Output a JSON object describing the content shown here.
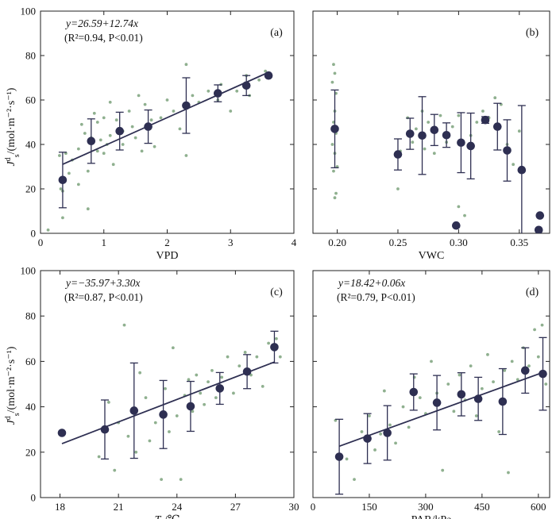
{
  "figure": {
    "y_axis_label_main": "J",
    "y_axis_label_sup": "d",
    "y_axis_label_sub": "s",
    "y_axis_label_units": "/(mol·m⁻²·s⁻¹)"
  },
  "colors": {
    "scatter": "#8fb08f",
    "marker": "#2e2f52",
    "line": "#2e2f52",
    "axis": "#222222"
  },
  "chart_data": [
    {
      "type": "scatter",
      "panel": "(a)",
      "xlabel": "VPD",
      "xlabel_sub": "",
      "xlabel_suffix": "",
      "ylabel": "J_s^d/(mol·m⁻²·s⁻¹)",
      "xlim": [
        0,
        4
      ],
      "ylim": [
        0,
        100
      ],
      "xticks": [
        0,
        1,
        2,
        3,
        4
      ],
      "xtick_labels": [
        "0",
        "1",
        "2",
        "3",
        "4"
      ],
      "yticks": [
        0,
        20,
        40,
        60,
        80,
        100
      ],
      "ytick_labels": [
        "0",
        "20",
        "40",
        "60",
        "80",
        "100"
      ],
      "equation": "y=26.59+12.74x",
      "stats": "(R²=0.94, P<0.01)",
      "fit": {
        "intercept": 26.59,
        "slope": 12.74,
        "x_range": [
          0.35,
          3.6
        ]
      },
      "means": [
        {
          "x": 0.35,
          "y": 24,
          "err": 12.5
        },
        {
          "x": 0.8,
          "y": 41.5,
          "err": 10
        },
        {
          "x": 1.25,
          "y": 46,
          "err": 8.5
        },
        {
          "x": 1.7,
          "y": 48,
          "err": 7.5
        },
        {
          "x": 2.3,
          "y": 57.5,
          "err": 12.5
        },
        {
          "x": 2.8,
          "y": 63,
          "err": 3.8
        },
        {
          "x": 3.25,
          "y": 66.5,
          "err": 4.5
        },
        {
          "x": 3.6,
          "y": 71,
          "err": 0
        }
      ],
      "raw_points": [
        [
          0.12,
          1.5
        ],
        [
          0.3,
          35
        ],
        [
          0.32,
          20
        ],
        [
          0.35,
          7
        ],
        [
          0.35,
          19
        ],
        [
          0.4,
          36
        ],
        [
          0.45,
          27
        ],
        [
          0.5,
          33
        ],
        [
          0.6,
          22
        ],
        [
          0.6,
          38
        ],
        [
          0.65,
          49
        ],
        [
          0.7,
          45
        ],
        [
          0.75,
          28
        ],
        [
          0.75,
          11
        ],
        [
          0.8,
          43
        ],
        [
          0.85,
          54
        ],
        [
          0.9,
          37
        ],
        [
          0.9,
          50
        ],
        [
          0.95,
          42
        ],
        [
          1.0,
          36
        ],
        [
          1.0,
          52
        ],
        [
          1.05,
          40
        ],
        [
          1.1,
          59
        ],
        [
          1.1,
          44
        ],
        [
          1.15,
          31
        ],
        [
          1.2,
          51
        ],
        [
          1.3,
          46
        ],
        [
          1.3,
          40
        ],
        [
          1.4,
          55
        ],
        [
          1.45,
          48
        ],
        [
          1.5,
          43
        ],
        [
          1.55,
          62
        ],
        [
          1.6,
          37
        ],
        [
          1.65,
          58
        ],
        [
          1.75,
          51
        ],
        [
          1.8,
          39
        ],
        [
          1.9,
          52
        ],
        [
          2.0,
          60
        ],
        [
          2.1,
          55
        ],
        [
          2.2,
          47
        ],
        [
          2.3,
          76
        ],
        [
          2.3,
          35
        ],
        [
          2.4,
          62
        ],
        [
          2.5,
          59
        ],
        [
          2.65,
          64
        ],
        [
          2.8,
          60
        ],
        [
          2.85,
          67
        ],
        [
          3.0,
          55
        ],
        [
          3.1,
          64
        ],
        [
          3.25,
          71
        ],
        [
          3.3,
          62
        ],
        [
          3.45,
          69
        ],
        [
          3.55,
          73
        ]
      ]
    },
    {
      "type": "scatter",
      "panel": "(b)",
      "xlabel": "VWC",
      "xlabel_sub": "",
      "xlabel_suffix": "",
      "ylabel": "",
      "xlim": [
        0.18,
        0.375
      ],
      "ylim": [
        0,
        100
      ],
      "xticks": [
        0.2,
        0.25,
        0.3,
        0.35
      ],
      "xtick_labels": [
        "0.20",
        "0.25",
        "0.30",
        "0.35"
      ],
      "yticks": [
        0,
        20,
        40,
        60,
        80,
        100
      ],
      "ytick_labels": [],
      "equation": "",
      "stats": "",
      "fit": null,
      "means": [
        {
          "x": 0.198,
          "y": 47,
          "err": 17.5
        },
        {
          "x": 0.25,
          "y": 35.5,
          "err": 7
        },
        {
          "x": 0.26,
          "y": 44.8,
          "err": 7
        },
        {
          "x": 0.27,
          "y": 44,
          "err": 17.5
        },
        {
          "x": 0.28,
          "y": 46.5,
          "err": 7
        },
        {
          "x": 0.29,
          "y": 44.2,
          "err": 5.5
        },
        {
          "x": 0.298,
          "y": 3.5,
          "err": 0
        },
        {
          "x": 0.302,
          "y": 40.8,
          "err": 13.5
        },
        {
          "x": 0.31,
          "y": 39.3,
          "err": 14.8
        },
        {
          "x": 0.322,
          "y": 51,
          "err": 1.5
        },
        {
          "x": 0.332,
          "y": 48,
          "err": 10.5
        },
        {
          "x": 0.34,
          "y": 37.3,
          "err": 13.8
        },
        {
          "x": 0.352,
          "y": 28.5,
          "err": 29
        },
        {
          "x": 0.367,
          "y": 8,
          "err": 0
        },
        {
          "x": 0.366,
          "y": 1.5,
          "err": 0
        }
      ],
      "raw_points": [
        [
          0.197,
          76
        ],
        [
          0.198,
          72
        ],
        [
          0.196,
          68
        ],
        [
          0.199,
          63
        ],
        [
          0.198,
          55
        ],
        [
          0.197,
          50
        ],
        [
          0.199,
          45
        ],
        [
          0.196,
          40
        ],
        [
          0.198,
          36
        ],
        [
          0.2,
          30
        ],
        [
          0.197,
          28
        ],
        [
          0.199,
          18
        ],
        [
          0.198,
          16
        ],
        [
          0.25,
          20
        ],
        [
          0.252,
          37
        ],
        [
          0.258,
          52
        ],
        [
          0.262,
          41
        ],
        [
          0.265,
          47
        ],
        [
          0.27,
          55
        ],
        [
          0.272,
          38
        ],
        [
          0.275,
          50
        ],
        [
          0.28,
          36
        ],
        [
          0.285,
          53
        ],
        [
          0.29,
          41
        ],
        [
          0.295,
          48
        ],
        [
          0.3,
          12
        ],
        [
          0.3,
          53
        ],
        [
          0.305,
          8
        ],
        [
          0.31,
          44
        ],
        [
          0.315,
          50
        ],
        [
          0.32,
          55
        ],
        [
          0.325,
          52
        ],
        [
          0.33,
          61
        ],
        [
          0.335,
          58
        ],
        [
          0.34,
          40
        ],
        [
          0.345,
          31
        ],
        [
          0.35,
          46
        ]
      ]
    },
    {
      "type": "scatter",
      "panel": "(c)",
      "xlabel": "T",
      "xlabel_sub": "a",
      "xlabel_suffix": "/℃",
      "ylabel": "J_s^d/(mol·m⁻²·s⁻¹)",
      "xlim": [
        17,
        30
      ],
      "ylim": [
        0,
        100
      ],
      "xticks": [
        18,
        21,
        24,
        27,
        30
      ],
      "xtick_labels": [
        "18",
        "21",
        "24",
        "27",
        "30"
      ],
      "yticks": [
        0,
        20,
        40,
        60,
        80,
        100
      ],
      "ytick_labels": [
        "0",
        "20",
        "40",
        "60",
        "80",
        "100"
      ],
      "equation": "y=−35.97+3.30x",
      "stats": "(R²=0.87, P<0.01)",
      "fit": {
        "intercept": -35.97,
        "slope": 3.3,
        "x_range": [
          18.1,
          29.0
        ]
      },
      "means": [
        {
          "x": 18.1,
          "y": 28.5,
          "err": 0
        },
        {
          "x": 20.3,
          "y": 30,
          "err": 13
        },
        {
          "x": 21.8,
          "y": 38.3,
          "err": 21
        },
        {
          "x": 23.3,
          "y": 36.6,
          "err": 15
        },
        {
          "x": 24.7,
          "y": 40.2,
          "err": 11
        },
        {
          "x": 26.2,
          "y": 48.1,
          "err": 7
        },
        {
          "x": 27.6,
          "y": 55.5,
          "err": 7.5
        },
        {
          "x": 29.0,
          "y": 66.3,
          "err": 7
        }
      ],
      "raw_points": [
        [
          20.0,
          18
        ],
        [
          20.5,
          42
        ],
        [
          20.8,
          12
        ],
        [
          21.0,
          33
        ],
        [
          21.3,
          76
        ],
        [
          21.5,
          27
        ],
        [
          21.9,
          20
        ],
        [
          22.1,
          55
        ],
        [
          22.4,
          44
        ],
        [
          22.6,
          25
        ],
        [
          22.9,
          33
        ],
        [
          23.2,
          8
        ],
        [
          23.4,
          48
        ],
        [
          23.6,
          29
        ],
        [
          23.8,
          66
        ],
        [
          24.0,
          36
        ],
        [
          24.2,
          8
        ],
        [
          24.4,
          45
        ],
        [
          24.6,
          52
        ],
        [
          24.8,
          38
        ],
        [
          25.0,
          54
        ],
        [
          25.2,
          46
        ],
        [
          25.4,
          41
        ],
        [
          25.6,
          51
        ],
        [
          25.8,
          56
        ],
        [
          26.0,
          44
        ],
        [
          26.3,
          53
        ],
        [
          26.6,
          62
        ],
        [
          26.9,
          46
        ],
        [
          27.2,
          58
        ],
        [
          27.5,
          64
        ],
        [
          27.8,
          54
        ],
        [
          28.1,
          62
        ],
        [
          28.4,
          49
        ],
        [
          28.7,
          68
        ],
        [
          29.1,
          70
        ],
        [
          29.3,
          62
        ]
      ]
    },
    {
      "type": "scatter",
      "panel": "(d)",
      "xlabel": "PAR/kPa",
      "xlabel_sub": "",
      "xlabel_suffix": "",
      "ylabel": "",
      "xlim": [
        0,
        630
      ],
      "ylim": [
        0,
        100
      ],
      "xticks": [
        0,
        150,
        300,
        450,
        600
      ],
      "xtick_labels": [
        "0",
        "150",
        "300",
        "450",
        "600"
      ],
      "yticks": [
        0,
        20,
        40,
        60,
        80,
        100
      ],
      "ytick_labels": [],
      "equation": "y=18.42+0.06x",
      "stats": "(R²=0.79, P<0.01)",
      "fit": {
        "intercept": 18.42,
        "slope": 0.06,
        "x_range": [
          70,
          615
        ]
      },
      "means": [
        {
          "x": 70,
          "y": 18,
          "err": 16.5
        },
        {
          "x": 145,
          "y": 26,
          "err": 11
        },
        {
          "x": 198,
          "y": 28.5,
          "err": 12
        },
        {
          "x": 268,
          "y": 46.5,
          "err": 8
        },
        {
          "x": 330,
          "y": 41.8,
          "err": 12
        },
        {
          "x": 395,
          "y": 45.5,
          "err": 9.5
        },
        {
          "x": 440,
          "y": 43.5,
          "err": 9.5
        },
        {
          "x": 505,
          "y": 42.3,
          "err": 14.5
        },
        {
          "x": 565,
          "y": 56,
          "err": 10
        },
        {
          "x": 612,
          "y": 54.5,
          "err": 16
        }
      ],
      "raw_points": [
        [
          60,
          34
        ],
        [
          90,
          17
        ],
        [
          110,
          8
        ],
        [
          130,
          29
        ],
        [
          150,
          36
        ],
        [
          165,
          21
        ],
        [
          180,
          28
        ],
        [
          190,
          47
        ],
        [
          205,
          32
        ],
        [
          220,
          24
        ],
        [
          240,
          40
        ],
        [
          255,
          31
        ],
        [
          270,
          53
        ],
        [
          285,
          44
        ],
        [
          300,
          37
        ],
        [
          315,
          60
        ],
        [
          330,
          46
        ],
        [
          345,
          12
        ],
        [
          360,
          50
        ],
        [
          375,
          38
        ],
        [
          390,
          54
        ],
        [
          405,
          43
        ],
        [
          420,
          58
        ],
        [
          435,
          36
        ],
        [
          450,
          48
        ],
        [
          465,
          63
        ],
        [
          480,
          51
        ],
        [
          495,
          29
        ],
        [
          510,
          56
        ],
        [
          520,
          11
        ],
        [
          530,
          60
        ],
        [
          545,
          52
        ],
        [
          560,
          66
        ],
        [
          575,
          58
        ],
        [
          590,
          74
        ],
        [
          600,
          62
        ],
        [
          610,
          76
        ],
        [
          620,
          50
        ]
      ]
    }
  ]
}
